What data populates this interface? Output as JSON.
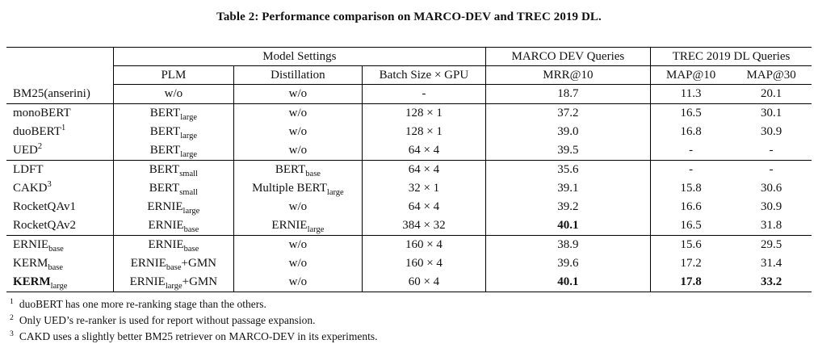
{
  "title": "Table 2: Performance comparison on MARCO-DEV and TREC 2019 DL.",
  "table": {
    "header": {
      "model_settings": "Model Settings",
      "marco_group": "MARCO DEV Queries",
      "trec_group": "TREC 2019 DL Queries",
      "plm": "PLM",
      "distillation": "Distillation",
      "batch": "Batch Size × GPU",
      "mrr10": "MRR@10",
      "map10": "MAP@10",
      "map30": "MAP@30"
    },
    "groups": [
      {
        "rows": [
          {
            "model": [
              {
                "t": "BM25(anserini)"
              }
            ],
            "plm": [
              {
                "t": "w/o"
              }
            ],
            "distill": [
              {
                "t": "w/o"
              }
            ],
            "batch": [
              {
                "t": "-"
              }
            ],
            "mrr": [
              {
                "t": "18.7"
              }
            ],
            "map10": [
              {
                "t": "11.3"
              }
            ],
            "map30": [
              {
                "t": "20.1"
              }
            ]
          }
        ]
      },
      {
        "rows": [
          {
            "model": [
              {
                "t": "monoBERT"
              }
            ],
            "plm": [
              {
                "t": "BERT"
              },
              {
                "t": "large",
                "s": "sub"
              }
            ],
            "distill": [
              {
                "t": "w/o"
              }
            ],
            "batch": [
              {
                "t": "128 × 1"
              }
            ],
            "mrr": [
              {
                "t": "37.2"
              }
            ],
            "map10": [
              {
                "t": "16.5"
              }
            ],
            "map30": [
              {
                "t": "30.1"
              }
            ]
          },
          {
            "model": [
              {
                "t": "duoBERT"
              },
              {
                "t": "1",
                "s": "sup"
              }
            ],
            "plm": [
              {
                "t": "BERT"
              },
              {
                "t": "large",
                "s": "sub"
              }
            ],
            "distill": [
              {
                "t": "w/o"
              }
            ],
            "batch": [
              {
                "t": "128 × 1"
              }
            ],
            "mrr": [
              {
                "t": "39.0"
              }
            ],
            "map10": [
              {
                "t": "16.8"
              }
            ],
            "map30": [
              {
                "t": "30.9"
              }
            ]
          },
          {
            "model": [
              {
                "t": "UED"
              },
              {
                "t": "2",
                "s": "sup"
              }
            ],
            "plm": [
              {
                "t": "BERT"
              },
              {
                "t": "large",
                "s": "sub"
              }
            ],
            "distill": [
              {
                "t": "w/o"
              }
            ],
            "batch": [
              {
                "t": "64 × 4"
              }
            ],
            "mrr": [
              {
                "t": "39.5"
              }
            ],
            "map10": [
              {
                "t": "-"
              }
            ],
            "map30": [
              {
                "t": "-"
              }
            ]
          }
        ]
      },
      {
        "rows": [
          {
            "model": [
              {
                "t": "LDFT"
              }
            ],
            "plm": [
              {
                "t": "BERT"
              },
              {
                "t": "small",
                "s": "sub"
              }
            ],
            "distill": [
              {
                "t": "BERT"
              },
              {
                "t": "base",
                "s": "sub"
              }
            ],
            "batch": [
              {
                "t": "64 × 4"
              }
            ],
            "mrr": [
              {
                "t": "35.6"
              }
            ],
            "map10": [
              {
                "t": "-"
              }
            ],
            "map30": [
              {
                "t": "-"
              }
            ]
          },
          {
            "model": [
              {
                "t": "CAKD"
              },
              {
                "t": "3",
                "s": "sup"
              }
            ],
            "plm": [
              {
                "t": "BERT"
              },
              {
                "t": "small",
                "s": "sub"
              }
            ],
            "distill": [
              {
                "t": "Multiple BERT"
              },
              {
                "t": "large",
                "s": "sub"
              }
            ],
            "batch": [
              {
                "t": "32 × 1"
              }
            ],
            "mrr": [
              {
                "t": "39.1"
              }
            ],
            "map10": [
              {
                "t": "15.8"
              }
            ],
            "map30": [
              {
                "t": "30.6"
              }
            ]
          },
          {
            "model": [
              {
                "t": "RocketQAv1"
              }
            ],
            "plm": [
              {
                "t": "ERNIE"
              },
              {
                "t": "large",
                "s": "sub"
              }
            ],
            "distill": [
              {
                "t": "w/o"
              }
            ],
            "batch": [
              {
                "t": "64 × 4"
              }
            ],
            "mrr": [
              {
                "t": "39.2"
              }
            ],
            "map10": [
              {
                "t": "16.6"
              }
            ],
            "map30": [
              {
                "t": "30.9"
              }
            ]
          },
          {
            "model": [
              {
                "t": "RocketQAv2"
              }
            ],
            "plm": [
              {
                "t": "ERNIE"
              },
              {
                "t": "base",
                "s": "sub"
              }
            ],
            "distill": [
              {
                "t": "ERNIE"
              },
              {
                "t": "large",
                "s": "sub"
              }
            ],
            "batch": [
              {
                "t": "384 × 32"
              }
            ],
            "mrr": [
              {
                "t": "40.1",
                "b": true
              }
            ],
            "map10": [
              {
                "t": "16.5"
              }
            ],
            "map30": [
              {
                "t": "31.8"
              }
            ]
          }
        ]
      },
      {
        "rows": [
          {
            "model": [
              {
                "t": "ERNIE"
              },
              {
                "t": "base",
                "s": "sub"
              }
            ],
            "plm": [
              {
                "t": "ERNIE"
              },
              {
                "t": "base",
                "s": "sub"
              }
            ],
            "distill": [
              {
                "t": "w/o"
              }
            ],
            "batch": [
              {
                "t": "160 × 4"
              }
            ],
            "mrr": [
              {
                "t": "38.9"
              }
            ],
            "map10": [
              {
                "t": "15.6"
              }
            ],
            "map30": [
              {
                "t": "29.5"
              }
            ]
          },
          {
            "model": [
              {
                "t": "KERM"
              },
              {
                "t": "base",
                "s": "sub"
              }
            ],
            "plm": [
              {
                "t": "ERNIE"
              },
              {
                "t": "base",
                "s": "sub"
              },
              {
                "t": "+GMN"
              }
            ],
            "distill": [
              {
                "t": "w/o"
              }
            ],
            "batch": [
              {
                "t": "160 × 4"
              }
            ],
            "mrr": [
              {
                "t": "39.6"
              }
            ],
            "map10": [
              {
                "t": "17.2"
              }
            ],
            "map30": [
              {
                "t": "31.4"
              }
            ]
          },
          {
            "model": [
              {
                "t": "KERM",
                "b": true
              },
              {
                "t": "large",
                "s": "sub"
              }
            ],
            "plm": [
              {
                "t": "ERNIE"
              },
              {
                "t": "large",
                "s": "sub"
              },
              {
                "t": "+GMN"
              }
            ],
            "distill": [
              {
                "t": "w/o"
              }
            ],
            "batch": [
              {
                "t": "60 × 4"
              }
            ],
            "mrr": [
              {
                "t": "40.1",
                "b": true
              }
            ],
            "map10": [
              {
                "t": "17.8",
                "b": true
              }
            ],
            "map30": [
              {
                "t": "33.2",
                "b": true
              }
            ]
          }
        ]
      }
    ]
  },
  "footnotes": [
    {
      "mark": "1",
      "text": "duoBERT has one more re-ranking stage than the others."
    },
    {
      "mark": "2",
      "text": "Only UED’s re-ranker is used for report without passage expansion."
    },
    {
      "mark": "3",
      "text": "CAKD uses a slightly better BM25 retriever on MARCO-DEV in its experiments."
    }
  ]
}
